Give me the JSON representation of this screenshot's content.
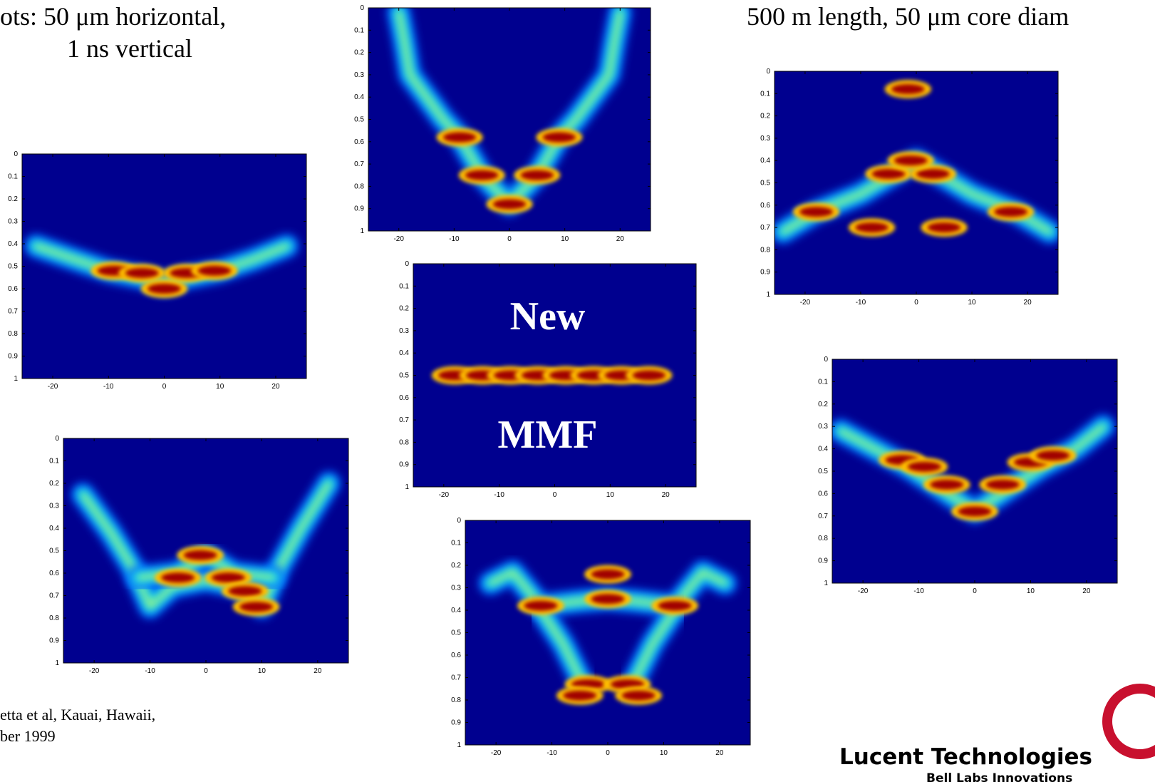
{
  "slide": {
    "caption_line1": "ots: 50 μm horizontal,",
    "caption_line2": "1 ns vertical",
    "caption_right": "500 m length, 50 μm core diam",
    "reference_line1": "etta et al, Kauai, Hawaii,",
    "reference_line2": "ber 1999",
    "logo": "Lucent Technologies",
    "logo_sub": "Bell Labs Innovations"
  },
  "chart_data": [
    {
      "type": "heatmap",
      "xlim": [
        -25.5,
        25.5
      ],
      "ylim": [
        0,
        1
      ],
      "yreversed": true,
      "xticks": [
        -20,
        -10,
        0,
        10,
        20
      ],
      "yticks": [
        0,
        0.1,
        0.2,
        0.3,
        0.4,
        0.5,
        0.6,
        0.7,
        0.8,
        0.9,
        1
      ],
      "ridges": [
        {
          "x": [
            -23,
            -16,
            -10,
            -4,
            0,
            4,
            10,
            16,
            22
          ],
          "y": [
            0.41,
            0.47,
            0.52,
            0.55,
            0.58,
            0.55,
            0.52,
            0.47,
            0.41
          ]
        }
      ],
      "peaks": {
        "x": [
          -9,
          -4,
          0,
          4,
          9
        ],
        "y": [
          0.52,
          0.53,
          0.6,
          0.53,
          0.52
        ]
      }
    },
    {
      "type": "heatmap",
      "xlim": [
        -25.5,
        25.5
      ],
      "ylim": [
        0,
        1
      ],
      "yreversed": true,
      "xticks": [
        -20,
        -10,
        0,
        10,
        20
      ],
      "yticks": [
        0,
        0.1,
        0.2,
        0.3,
        0.4,
        0.5,
        0.6,
        0.7,
        0.8,
        0.9,
        1
      ],
      "ridges": [
        {
          "x": [
            -20,
            -19,
            -18,
            -15,
            -12,
            -9,
            -5,
            0,
            5,
            9,
            12,
            15,
            18,
            19,
            20
          ],
          "y": [
            0.02,
            0.15,
            0.3,
            0.4,
            0.5,
            0.58,
            0.75,
            0.88,
            0.75,
            0.58,
            0.5,
            0.4,
            0.3,
            0.15,
            0.02
          ]
        }
      ],
      "peaks": {
        "x": [
          -9,
          9,
          -5,
          5,
          0
        ],
        "y": [
          0.58,
          0.58,
          0.75,
          0.75,
          0.88
        ]
      }
    },
    {
      "type": "heatmap",
      "xlim": [
        -25.5,
        25.5
      ],
      "ylim": [
        0,
        1
      ],
      "yreversed": true,
      "xticks": [
        -20,
        -10,
        0,
        10,
        20
      ],
      "yticks": [
        0,
        0.1,
        0.2,
        0.3,
        0.4,
        0.5,
        0.6,
        0.7,
        0.8,
        0.9,
        1
      ],
      "annotations": [
        "New",
        "MMF"
      ],
      "ridges": [
        {
          "x": [
            -22,
            -10,
            0,
            10,
            22
          ],
          "y": [
            0.5,
            0.5,
            0.5,
            0.5,
            0.5
          ]
        }
      ],
      "peaks": {
        "x": [
          -18,
          -13,
          -8,
          -3,
          2,
          7,
          12,
          17
        ],
        "y": [
          0.5,
          0.5,
          0.5,
          0.5,
          0.5,
          0.5,
          0.5,
          0.5
        ]
      }
    },
    {
      "type": "heatmap",
      "xlim": [
        -25.5,
        25.5
      ],
      "ylim": [
        0,
        1
      ],
      "yreversed": true,
      "xticks": [
        -20,
        -10,
        0,
        10,
        20
      ],
      "yticks": [
        0,
        0.1,
        0.2,
        0.3,
        0.4,
        0.5,
        0.6,
        0.7,
        0.8,
        0.9,
        1
      ],
      "ridges": [
        {
          "x": [
            -22,
            -17,
            -13,
            -10,
            -6,
            0,
            6,
            10,
            13,
            17,
            22
          ],
          "y": [
            0.25,
            0.42,
            0.58,
            0.75,
            0.66,
            0.63,
            0.66,
            0.75,
            0.58,
            0.4,
            0.2
          ]
        },
        {
          "x": [
            -12,
            -5,
            0,
            5,
            12
          ],
          "y": [
            0.62,
            0.6,
            0.52,
            0.6,
            0.62
          ]
        }
      ],
      "peaks": {
        "x": [
          -1,
          -5,
          4,
          7,
          9
        ],
        "y": [
          0.52,
          0.62,
          0.62,
          0.68,
          0.75
        ]
      }
    },
    {
      "type": "heatmap",
      "xlim": [
        -25.5,
        25.5
      ],
      "ylim": [
        0,
        1
      ],
      "yreversed": true,
      "xticks": [
        -20,
        -10,
        0,
        10,
        20
      ],
      "yticks": [
        0,
        0.1,
        0.2,
        0.3,
        0.4,
        0.5,
        0.6,
        0.7,
        0.8,
        0.9,
        1
      ],
      "ridges": [
        {
          "x": [
            -21,
            -17,
            -12,
            -5,
            0,
            5,
            12,
            17,
            21
          ],
          "y": [
            0.28,
            0.23,
            0.38,
            0.36,
            0.35,
            0.36,
            0.38,
            0.23,
            0.28
          ]
        },
        {
          "x": [
            -12,
            -8,
            -4
          ],
          "y": [
            0.4,
            0.55,
            0.75
          ]
        },
        {
          "x": [
            12,
            8,
            4
          ],
          "y": [
            0.4,
            0.55,
            0.75
          ]
        }
      ],
      "peaks": {
        "x": [
          0,
          -12,
          12,
          -3.5,
          3.5,
          -5,
          5.5,
          0
        ],
        "y": [
          0.35,
          0.38,
          0.38,
          0.73,
          0.73,
          0.78,
          0.78,
          0.24
        ]
      }
    },
    {
      "type": "heatmap",
      "xlim": [
        -25.5,
        25.5
      ],
      "ylim": [
        0,
        1
      ],
      "yreversed": true,
      "xticks": [
        -20,
        -10,
        0,
        10,
        20
      ],
      "yticks": [
        0,
        0.1,
        0.2,
        0.3,
        0.4,
        0.5,
        0.6,
        0.7,
        0.8,
        0.9,
        1
      ],
      "ridges": [
        {
          "x": [
            -24,
            -18,
            -10,
            -4,
            0,
            4,
            10,
            18,
            24
          ],
          "y": [
            0.72,
            0.63,
            0.55,
            0.46,
            0.4,
            0.46,
            0.55,
            0.63,
            0.72
          ]
        },
        {
          "x": [
            -7,
            -2,
            4
          ],
          "y": [
            0.08,
            0.08,
            0.08
          ]
        }
      ],
      "peaks": {
        "x": [
          -1.5,
          -18,
          17,
          -5,
          3,
          -1,
          -8,
          5
        ],
        "y": [
          0.08,
          0.63,
          0.63,
          0.46,
          0.46,
          0.4,
          0.7,
          0.7
        ]
      }
    },
    {
      "type": "heatmap",
      "xlim": [
        -25.5,
        25.5
      ],
      "ylim": [
        0,
        1
      ],
      "yreversed": true,
      "xticks": [
        -20,
        -10,
        0,
        10,
        20
      ],
      "yticks": [
        0,
        0.1,
        0.2,
        0.3,
        0.4,
        0.5,
        0.6,
        0.7,
        0.8,
        0.9,
        1
      ],
      "ridges": [
        {
          "x": [
            -24,
            -18,
            -12,
            -6,
            0,
            6,
            12,
            18,
            23
          ],
          "y": [
            0.32,
            0.4,
            0.48,
            0.58,
            0.68,
            0.58,
            0.48,
            0.4,
            0.3
          ]
        }
      ],
      "peaks": {
        "x": [
          -13,
          -9,
          10,
          14,
          -5,
          5,
          0
        ],
        "y": [
          0.45,
          0.48,
          0.46,
          0.43,
          0.56,
          0.56,
          0.68
        ]
      }
    }
  ]
}
